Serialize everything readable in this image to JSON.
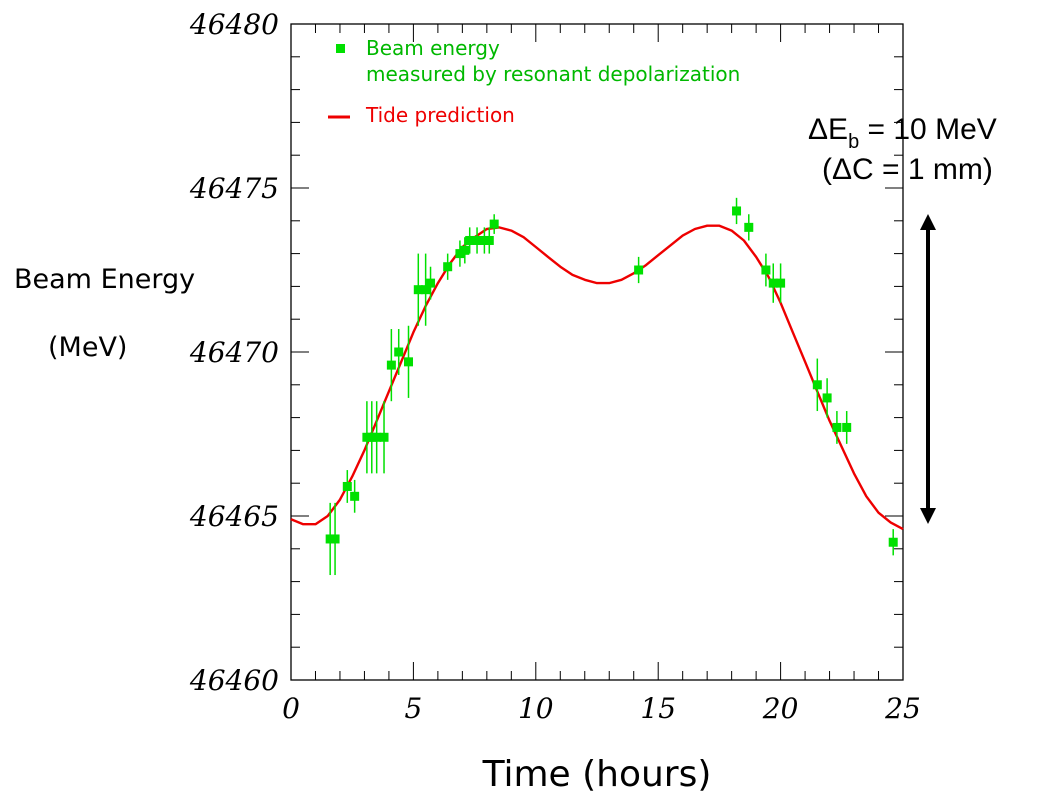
{
  "chart_data": {
    "type": "scatter",
    "xlabel": "Time (hours)",
    "ylabel_line1": "Beam Energy",
    "ylabel_line2": "(MeV)",
    "xlim": [
      0,
      25
    ],
    "ylim": [
      46460,
      46480
    ],
    "x_ticks": [
      "0",
      "5",
      "10",
      "15",
      "20",
      "25"
    ],
    "y_ticks": [
      "46460",
      "46465",
      "46470",
      "46475",
      "46480"
    ],
    "legend_position": "top-left",
    "series": [
      {
        "name_line1": "Beam energy",
        "name_line2": "measured by resonant depolarization",
        "kind": "points-with-error-bars",
        "color": "#00e000",
        "points": [
          {
            "x": 1.6,
            "y": 46464.3,
            "err": 1.1
          },
          {
            "x": 1.8,
            "y": 46464.3,
            "err": 1.1
          },
          {
            "x": 2.3,
            "y": 46465.9,
            "err": 0.5
          },
          {
            "x": 2.6,
            "y": 46465.6,
            "err": 0.5
          },
          {
            "x": 3.1,
            "y": 46467.4,
            "err": 1.1
          },
          {
            "x": 3.3,
            "y": 46467.4,
            "err": 1.1
          },
          {
            "x": 3.5,
            "y": 46467.4,
            "err": 1.1
          },
          {
            "x": 3.8,
            "y": 46467.4,
            "err": 1.1
          },
          {
            "x": 4.1,
            "y": 46469.6,
            "err": 1.1
          },
          {
            "x": 4.4,
            "y": 46470.0,
            "err": 0.7
          },
          {
            "x": 4.8,
            "y": 46469.7,
            "err": 1.1
          },
          {
            "x": 5.2,
            "y": 46471.9,
            "err": 1.1
          },
          {
            "x": 5.5,
            "y": 46471.9,
            "err": 1.1
          },
          {
            "x": 5.7,
            "y": 46472.1,
            "err": 0.5
          },
          {
            "x": 6.4,
            "y": 46472.6,
            "err": 0.4
          },
          {
            "x": 6.9,
            "y": 46473.0,
            "err": 0.4
          },
          {
            "x": 7.1,
            "y": 46473.1,
            "err": 0.4
          },
          {
            "x": 7.3,
            "y": 46473.4,
            "err": 0.4
          },
          {
            "x": 7.6,
            "y": 46473.4,
            "err": 0.4
          },
          {
            "x": 7.9,
            "y": 46473.4,
            "err": 0.4
          },
          {
            "x": 8.1,
            "y": 46473.4,
            "err": 0.4
          },
          {
            "x": 8.3,
            "y": 46473.9,
            "err": 0.3
          },
          {
            "x": 14.2,
            "y": 46472.5,
            "err": 0.4
          },
          {
            "x": 18.2,
            "y": 46474.3,
            "err": 0.4
          },
          {
            "x": 18.7,
            "y": 46473.8,
            "err": 0.4
          },
          {
            "x": 19.4,
            "y": 46472.5,
            "err": 0.5
          },
          {
            "x": 19.7,
            "y": 46472.1,
            "err": 0.6
          },
          {
            "x": 20.0,
            "y": 46472.1,
            "err": 0.6
          },
          {
            "x": 21.5,
            "y": 46469.0,
            "err": 0.8
          },
          {
            "x": 21.9,
            "y": 46468.6,
            "err": 0.6
          },
          {
            "x": 22.3,
            "y": 46467.7,
            "err": 0.5
          },
          {
            "x": 22.7,
            "y": 46467.7,
            "err": 0.5
          },
          {
            "x": 24.6,
            "y": 46464.2,
            "err": 0.4
          }
        ]
      },
      {
        "name_line1": "Tide prediction",
        "name_line2": "",
        "kind": "line",
        "color": "#ee0000",
        "points": [
          {
            "x": 0,
            "y": 46464.9
          },
          {
            "x": 0.5,
            "y": 46464.75
          },
          {
            "x": 1,
            "y": 46464.75
          },
          {
            "x": 1.5,
            "y": 46465.0
          },
          {
            "x": 2,
            "y": 46465.5
          },
          {
            "x": 2.5,
            "y": 46466.2
          },
          {
            "x": 3,
            "y": 46467.0
          },
          {
            "x": 3.5,
            "y": 46467.9
          },
          {
            "x": 4,
            "y": 46468.8
          },
          {
            "x": 4.5,
            "y": 46469.7
          },
          {
            "x": 5,
            "y": 46470.6
          },
          {
            "x": 5.5,
            "y": 46471.4
          },
          {
            "x": 6,
            "y": 46472.1
          },
          {
            "x": 6.5,
            "y": 46472.7
          },
          {
            "x": 7,
            "y": 46473.2
          },
          {
            "x": 7.5,
            "y": 46473.5
          },
          {
            "x": 8,
            "y": 46473.75
          },
          {
            "x": 8.5,
            "y": 46473.8
          },
          {
            "x": 9,
            "y": 46473.7
          },
          {
            "x": 9.5,
            "y": 46473.5
          },
          {
            "x": 10,
            "y": 46473.2
          },
          {
            "x": 10.5,
            "y": 46472.9
          },
          {
            "x": 11,
            "y": 46472.6
          },
          {
            "x": 11.5,
            "y": 46472.35
          },
          {
            "x": 12,
            "y": 46472.2
          },
          {
            "x": 12.5,
            "y": 46472.1
          },
          {
            "x": 13,
            "y": 46472.1
          },
          {
            "x": 13.5,
            "y": 46472.2
          },
          {
            "x": 14,
            "y": 46472.4
          },
          {
            "x": 14.5,
            "y": 46472.65
          },
          {
            "x": 15,
            "y": 46472.95
          },
          {
            "x": 15.5,
            "y": 46473.25
          },
          {
            "x": 16,
            "y": 46473.55
          },
          {
            "x": 16.5,
            "y": 46473.75
          },
          {
            "x": 17,
            "y": 46473.85
          },
          {
            "x": 17.5,
            "y": 46473.85
          },
          {
            "x": 18,
            "y": 46473.7
          },
          {
            "x": 18.5,
            "y": 46473.4
          },
          {
            "x": 19,
            "y": 46472.9
          },
          {
            "x": 19.5,
            "y": 46472.3
          },
          {
            "x": 20,
            "y": 46471.5
          },
          {
            "x": 20.5,
            "y": 46470.6
          },
          {
            "x": 21,
            "y": 46469.7
          },
          {
            "x": 21.5,
            "y": 46468.8
          },
          {
            "x": 22,
            "y": 46467.9
          },
          {
            "x": 22.5,
            "y": 46467.1
          },
          {
            "x": 23,
            "y": 46466.3
          },
          {
            "x": 23.5,
            "y": 46465.6
          },
          {
            "x": 24,
            "y": 46465.1
          },
          {
            "x": 24.5,
            "y": 46464.8
          },
          {
            "x": 25,
            "y": 46464.6
          }
        ]
      }
    ],
    "annotation": {
      "line1_prefix": "ΔE",
      "line1_sub": "b",
      "line1_suffix": " = 10 MeV",
      "line2": "(ΔC = 1 mm)",
      "arrow_from_y": 46465,
      "arrow_to_y": 46475,
      "arrow_color": "#000000"
    }
  }
}
